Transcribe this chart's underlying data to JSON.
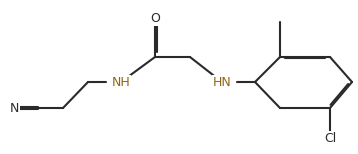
{
  "bg": "#ffffff",
  "bc": "#2a2a2a",
  "nh_color": "#8B6914",
  "lw": 1.5,
  "dbl_off": 0.006,
  "fs": 9.0,
  "figsize": [
    3.58,
    1.54
  ],
  "dpi": 100,
  "xlim": [
    0.0,
    1.0
  ],
  "ylim": [
    0.0,
    1.0
  ]
}
